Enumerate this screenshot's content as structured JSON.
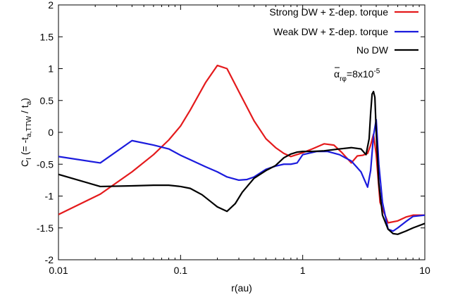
{
  "chart_data": {
    "type": "line",
    "title": "",
    "xlabel": "r(au)",
    "ylabel": {
      "main": "C",
      "main_sub": "I",
      "open": " (= -t",
      "sub1": "a,TTW",
      "mid": " / t",
      "sub2": "a",
      "close": ")"
    },
    "x_scale": "log",
    "xlim": [
      0.01,
      10
    ],
    "ylim": [
      -2,
      2
    ],
    "x_ticks": [
      {
        "value": 0.01,
        "label": "0.01"
      },
      {
        "value": 0.1,
        "label": "0.1"
      },
      {
        "value": 1,
        "label": "1"
      },
      {
        "value": 10,
        "label": "10"
      }
    ],
    "y_ticks": [
      {
        "value": -2,
        "label": "-2"
      },
      {
        "value": -1.5,
        "label": "-1.5"
      },
      {
        "value": -1,
        "label": "-1"
      },
      {
        "value": -0.5,
        "label": "-0.5"
      },
      {
        "value": 0,
        "label": "0"
      },
      {
        "value": 0.5,
        "label": "0.5"
      },
      {
        "value": 1,
        "label": "1"
      },
      {
        "value": 1.5,
        "label": "1.5"
      },
      {
        "value": 2,
        "label": "2"
      }
    ],
    "grid": false,
    "legend_position": "top-right",
    "annotation": {
      "text_main": "α",
      "text_sub": "rφ",
      "text_eq": "=8x10",
      "text_exp": "-5"
    },
    "series": [
      {
        "name": "Strong DW + Σ-dep. torque",
        "color": "#e41a1c",
        "x": [
          0.01,
          0.022,
          0.04,
          0.06,
          0.08,
          0.1,
          0.12,
          0.16,
          0.2,
          0.24,
          0.3,
          0.4,
          0.5,
          0.6,
          0.7,
          0.8,
          1.0,
          1.2,
          1.5,
          1.8,
          2.1,
          2.5,
          2.8,
          3.1,
          3.4,
          3.6,
          3.8,
          4.0,
          4.3,
          5.0,
          6.0,
          7.0,
          8.0,
          10.0
        ],
        "y": [
          -1.29,
          -0.97,
          -0.62,
          -0.35,
          -0.12,
          0.1,
          0.35,
          0.78,
          1.05,
          1.0,
          0.64,
          0.18,
          -0.1,
          -0.24,
          -0.33,
          -0.38,
          -0.32,
          -0.26,
          -0.18,
          -0.2,
          -0.32,
          -0.48,
          -0.37,
          -0.36,
          -0.33,
          -0.2,
          -0.03,
          -0.35,
          -1.1,
          -1.42,
          -1.39,
          -1.33,
          -1.3,
          -1.3
        ]
      },
      {
        "name": "Weak DW + Σ-dep. torque",
        "color": "#1b1bdd",
        "x": [
          0.01,
          0.022,
          0.04,
          0.06,
          0.08,
          0.1,
          0.12,
          0.16,
          0.2,
          0.24,
          0.3,
          0.35,
          0.4,
          0.5,
          0.6,
          0.7,
          0.8,
          0.9,
          1.0,
          1.3,
          1.6,
          2.0,
          2.5,
          3.0,
          3.4,
          3.6,
          3.8,
          4.0,
          4.2,
          4.5,
          5.0,
          5.5,
          6.0,
          7.0,
          8.0,
          10.0
        ],
        "y": [
          -0.38,
          -0.48,
          -0.13,
          -0.2,
          -0.26,
          -0.36,
          -0.43,
          -0.54,
          -0.62,
          -0.7,
          -0.75,
          -0.74,
          -0.7,
          -0.58,
          -0.53,
          -0.5,
          -0.5,
          -0.48,
          -0.35,
          -0.3,
          -0.3,
          -0.35,
          -0.45,
          -0.62,
          -0.86,
          -0.6,
          -0.05,
          0.2,
          -0.5,
          -1.1,
          -1.52,
          -1.55,
          -1.5,
          -1.4,
          -1.32,
          -1.3
        ]
      },
      {
        "name": "No DW",
        "color": "#000000",
        "x": [
          0.01,
          0.022,
          0.04,
          0.06,
          0.08,
          0.1,
          0.12,
          0.15,
          0.18,
          0.2,
          0.24,
          0.28,
          0.32,
          0.4,
          0.5,
          0.6,
          0.7,
          0.8,
          0.9,
          1.0,
          1.2,
          1.5,
          2.0,
          2.5,
          3.0,
          3.3,
          3.5,
          3.6,
          3.7,
          3.8,
          3.9,
          4.0,
          4.2,
          4.5,
          5.0,
          5.5,
          6.0,
          7.0,
          8.0,
          10.0
        ],
        "y": [
          -0.66,
          -0.85,
          -0.84,
          -0.83,
          -0.83,
          -0.85,
          -0.88,
          -0.98,
          -1.1,
          -1.17,
          -1.24,
          -1.12,
          -0.94,
          -0.72,
          -0.6,
          -0.52,
          -0.4,
          -0.34,
          -0.31,
          -0.3,
          -0.3,
          -0.29,
          -0.26,
          -0.24,
          -0.26,
          -0.35,
          -0.1,
          0.3,
          0.6,
          0.64,
          0.55,
          0.0,
          -0.8,
          -1.3,
          -1.52,
          -1.59,
          -1.6,
          -1.55,
          -1.5,
          -1.43
        ]
      }
    ]
  }
}
